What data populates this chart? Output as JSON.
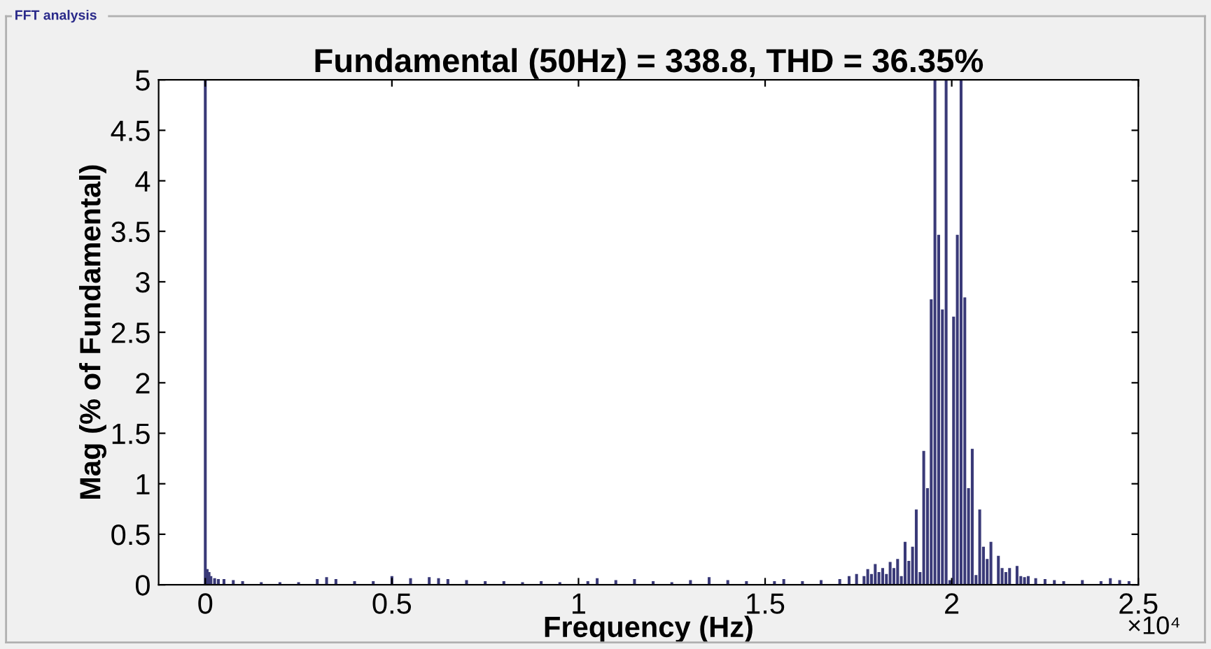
{
  "chart_data": {
    "type": "bar",
    "title": "Fundamental (50Hz) = 338.8, THD = 36.35%",
    "xlabel": "Frequency (Hz)",
    "ylabel": "Mag (% of Fundamental)",
    "annotations": [
      "FFT analysis",
      "×10⁴"
    ],
    "color": "#3a3a78",
    "x": [
      0,
      0.005,
      0.01,
      0.015,
      0.025,
      0.035,
      0.05,
      0.075,
      0.1,
      0.15,
      0.2,
      0.25,
      0.3,
      0.325,
      0.35,
      0.4,
      0.45,
      0.5,
      0.55,
      0.6,
      0.625,
      0.65,
      0.7,
      0.75,
      0.8,
      0.85,
      0.9,
      0.95,
      1.025,
      1.05,
      1.1,
      1.15,
      1.2,
      1.25,
      1.3,
      1.35,
      1.4,
      1.45,
      1.525,
      1.55,
      1.6,
      1.65,
      1.7,
      1.725,
      1.745,
      1.765,
      1.775,
      1.785,
      1.795,
      1.805,
      1.815,
      1.825,
      1.835,
      1.845,
      1.855,
      1.865,
      1.875,
      1.885,
      1.895,
      1.905,
      1.915,
      1.925,
      1.935,
      1.945,
      1.955,
      1.965,
      1.975,
      1.985,
      1.995,
      2.005,
      2.015,
      2.025,
      2.035,
      2.045,
      2.055,
      2.065,
      2.075,
      2.085,
      2.095,
      2.105,
      2.125,
      2.135,
      2.145,
      2.155,
      2.175,
      2.185,
      2.195,
      2.205,
      2.225,
      2.25,
      2.275,
      2.3,
      2.35,
      2.4,
      2.425,
      2.45,
      2.475
    ],
    "values": [
      5,
      0.15,
      0.12,
      0.08,
      0.06,
      0.05,
      0.05,
      0.04,
      0.03,
      0.02,
      0.02,
      0.02,
      0.05,
      0.07,
      0.05,
      0.03,
      0.03,
      0.08,
      0.06,
      0.07,
      0.06,
      0.05,
      0.04,
      0.03,
      0.03,
      0.02,
      0.03,
      0.02,
      0.03,
      0.06,
      0.04,
      0.05,
      0.03,
      0.02,
      0.04,
      0.07,
      0.04,
      0.03,
      0.03,
      0.05,
      0.03,
      0.04,
      0.05,
      0.08,
      0.1,
      0.08,
      0.15,
      0.1,
      0.2,
      0.12,
      0.16,
      0.1,
      0.22,
      0.16,
      0.25,
      0.08,
      0.42,
      0.23,
      0.37,
      0.74,
      0.12,
      1.32,
      0.95,
      2.82,
      5,
      3.46,
      2.72,
      5,
      0.04,
      2.65,
      3.46,
      5,
      2.84,
      0.95,
      1.34,
      0.09,
      0.74,
      0.37,
      0.25,
      0.42,
      0.28,
      0.16,
      0.12,
      0.16,
      0.18,
      0.08,
      0.07,
      0.08,
      0.06,
      0.05,
      0.04,
      0.03,
      0.04,
      0.03,
      0.06,
      0.04,
      0.03
    ],
    "xlim": [
      -0.125,
      2.5
    ],
    "xticks": [
      0,
      0.5,
      1,
      1.5,
      2,
      2.5
    ],
    "ylim": [
      0,
      5
    ],
    "yticks": [
      0,
      0.5,
      1,
      1.5,
      2,
      2.5,
      3,
      3.5,
      4,
      4.5,
      5
    ],
    "grid": false
  }
}
